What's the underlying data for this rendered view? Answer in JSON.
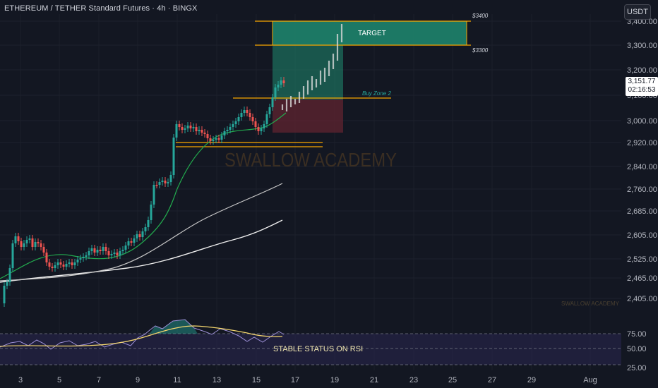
{
  "header": {
    "title": "ETHEREUM / TETHER Standard Futures · 4h · BINGX",
    "currency": "USDT"
  },
  "last_price": {
    "price": "3,151.77",
    "countdown": "02:16:53"
  },
  "price_axis": {
    "labels": [
      "3,400.00",
      "3,300.00",
      "3,200.00",
      "3,100.00",
      "3,000.00",
      "2,920.00",
      "2,840.00",
      "2,760.00",
      "2,685.00",
      "2,605.00",
      "2,525.00",
      "2,465.00",
      "2,405.00"
    ]
  },
  "rsi_axis": {
    "labels": [
      "75.00",
      "50.00",
      "25.00"
    ]
  },
  "time_axis": {
    "labels": [
      "3",
      "5",
      "7",
      "9",
      "11",
      "13",
      "15",
      "17",
      "19",
      "21",
      "23",
      "25",
      "27",
      "29",
      "Aug"
    ]
  },
  "annotations": {
    "target": "TARGET",
    "target_high": "$3400",
    "target_low": "$3300",
    "buy_zone": "Buy Zone 2",
    "watermark": "SWALLOW ACADEMY",
    "watermark_small": "SWALLOW ACADEMY",
    "rsi_note": "STABLE STATUS ON RSI"
  },
  "colors": {
    "background": "#131722",
    "up": "#26a69a",
    "down": "#ef5350",
    "target_fill": "#1f8a70",
    "zone_line": "#f7a600",
    "ma_green": "#22ab4e",
    "rsi_line": "#7e57c2",
    "rsi_ma": "#f5d76e"
  },
  "chart_data": {
    "type": "candlestick",
    "symbol": "ETHEREUM / TETHER Standard Futures",
    "interval": "4h",
    "exchange": "BINGX",
    "ylim": [
      2380,
      3420
    ],
    "current_price": 3151.77,
    "targets": {
      "target_high": 3400,
      "target_low": 3300,
      "buy_zone": 3085
    },
    "projection_path": [
      3085,
      3120,
      3180,
      3250,
      3400
    ],
    "rsi": {
      "levels": [
        75,
        50,
        25
      ],
      "values": [
        48,
        52,
        50,
        46,
        55,
        57,
        52,
        49,
        53,
        56,
        50,
        47,
        54,
        60,
        63,
        72,
        80,
        78,
        70,
        66,
        68,
        65,
        62,
        58,
        57
      ]
    },
    "ma_fast_points": [
      2440,
      2470,
      2500,
      2520,
      2510,
      2530,
      2560,
      2600,
      2700,
      2820,
      2900,
      2960,
      2990,
      3020,
      3060
    ],
    "ma_mid_points": [
      2460,
      2470,
      2480,
      2490,
      2500,
      2520,
      2560,
      2620,
      2680,
      2730,
      2780
    ],
    "ma_slow_points": [
      2450,
      2455,
      2460,
      2470,
      2480,
      2500,
      2530,
      2570,
      2610,
      2650
    ]
  }
}
